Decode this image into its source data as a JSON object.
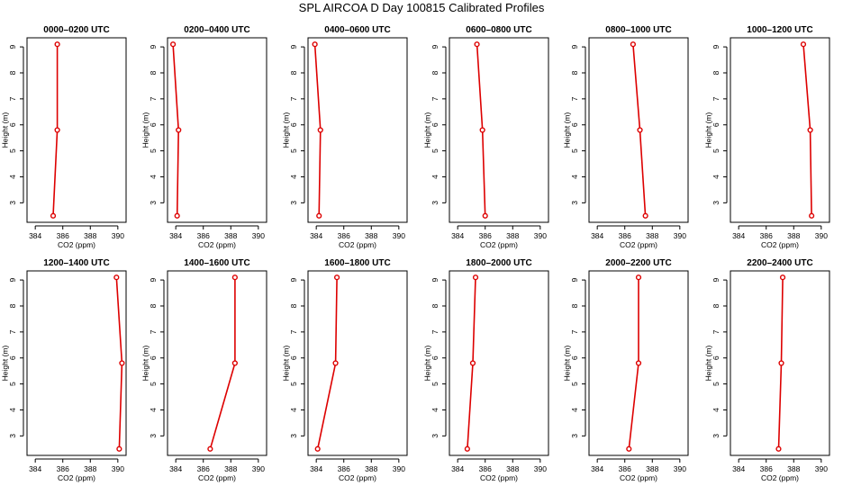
{
  "figure": {
    "title": "SPL AIRCOA D  Day 100815  Calibrated Profiles"
  },
  "colors": {
    "series": "#dd0000",
    "axes": "#000000",
    "background": "#ffffff"
  },
  "chart_data": [
    {
      "type": "line",
      "title": "0000–0200 UTC",
      "xlabel": "CO2 (ppm)",
      "ylabel": "Height (m)",
      "xlim": [
        383.4,
        390.6
      ],
      "ylim": [
        2.25,
        9.35
      ],
      "xticks": [
        384,
        386,
        388,
        390
      ],
      "xticklabels": [
        "384",
        "386",
        "388",
        "390"
      ],
      "yticks": [
        3,
        4,
        5,
        6,
        7,
        8,
        9
      ],
      "yticklabels": [
        "3",
        "4",
        "5",
        "6",
        "7",
        "8",
        "9"
      ],
      "grid": false,
      "x": [
        385.6,
        385.6,
        385.3
      ],
      "y": [
        9.1,
        5.8,
        2.5
      ]
    },
    {
      "type": "line",
      "title": "0200–0400 UTC",
      "xlabel": "CO2 (ppm)",
      "ylabel": "Height (m)",
      "xlim": [
        383.4,
        390.6
      ],
      "ylim": [
        2.25,
        9.35
      ],
      "xticks": [
        384,
        386,
        388,
        390
      ],
      "xticklabels": [
        "384",
        "386",
        "388",
        "390"
      ],
      "yticks": [
        3,
        4,
        5,
        6,
        7,
        8,
        9
      ],
      "yticklabels": [
        "3",
        "4",
        "5",
        "6",
        "7",
        "8",
        "9"
      ],
      "grid": false,
      "x": [
        383.8,
        384.2,
        384.1
      ],
      "y": [
        9.1,
        5.8,
        2.5
      ]
    },
    {
      "type": "line",
      "title": "0400–0600 UTC",
      "xlabel": "CO2 (ppm)",
      "ylabel": "Height (m)",
      "xlim": [
        383.4,
        390.6
      ],
      "ylim": [
        2.25,
        9.35
      ],
      "xticks": [
        384,
        386,
        388,
        390
      ],
      "xticklabels": [
        "384",
        "386",
        "388",
        "390"
      ],
      "yticks": [
        3,
        4,
        5,
        6,
        7,
        8,
        9
      ],
      "yticklabels": [
        "3",
        "4",
        "5",
        "6",
        "7",
        "8",
        "9"
      ],
      "grid": false,
      "x": [
        383.9,
        384.3,
        384.2
      ],
      "y": [
        9.1,
        5.8,
        2.5
      ]
    },
    {
      "type": "line",
      "title": "0600–0800 UTC",
      "xlabel": "CO2 (ppm)",
      "ylabel": "Height (m)",
      "xlim": [
        383.4,
        390.6
      ],
      "ylim": [
        2.25,
        9.35
      ],
      "xticks": [
        384,
        386,
        388,
        390
      ],
      "xticklabels": [
        "384",
        "386",
        "388",
        "390"
      ],
      "yticks": [
        3,
        4,
        5,
        6,
        7,
        8,
        9
      ],
      "yticklabels": [
        "3",
        "4",
        "5",
        "6",
        "7",
        "8",
        "9"
      ],
      "grid": false,
      "x": [
        385.4,
        385.8,
        386.0
      ],
      "y": [
        9.1,
        5.8,
        2.5
      ]
    },
    {
      "type": "line",
      "title": "0800–1000 UTC",
      "xlabel": "CO2 (ppm)",
      "ylabel": "Height (m)",
      "xlim": [
        383.4,
        390.6
      ],
      "ylim": [
        2.25,
        9.35
      ],
      "xticks": [
        384,
        386,
        388,
        390
      ],
      "xticklabels": [
        "384",
        "386",
        "388",
        "390"
      ],
      "yticks": [
        3,
        4,
        5,
        6,
        7,
        8,
        9
      ],
      "yticklabels": [
        "3",
        "4",
        "5",
        "6",
        "7",
        "8",
        "9"
      ],
      "grid": false,
      "x": [
        386.6,
        387.1,
        387.5
      ],
      "y": [
        9.1,
        5.8,
        2.5
      ]
    },
    {
      "type": "line",
      "title": "1000–1200 UTC",
      "xlabel": "CO2 (ppm)",
      "ylabel": "Height (m)",
      "xlim": [
        383.4,
        390.6
      ],
      "ylim": [
        2.25,
        9.35
      ],
      "xticks": [
        384,
        386,
        388,
        390
      ],
      "xticklabels": [
        "384",
        "386",
        "388",
        "390"
      ],
      "yticks": [
        3,
        4,
        5,
        6,
        7,
        8,
        9
      ],
      "yticklabels": [
        "3",
        "4",
        "5",
        "6",
        "7",
        "8",
        "9"
      ],
      "grid": false,
      "x": [
        388.7,
        389.2,
        389.3
      ],
      "y": [
        9.1,
        5.8,
        2.5
      ]
    },
    {
      "type": "line",
      "title": "1200–1400 UTC",
      "xlabel": "CO2 (ppm)",
      "ylabel": "Height (m)",
      "xlim": [
        383.4,
        390.6
      ],
      "ylim": [
        2.25,
        9.35
      ],
      "xticks": [
        384,
        386,
        388,
        390
      ],
      "xticklabels": [
        "384",
        "386",
        "388",
        "390"
      ],
      "yticks": [
        3,
        4,
        5,
        6,
        7,
        8,
        9
      ],
      "yticklabels": [
        "3",
        "4",
        "5",
        "6",
        "7",
        "8",
        "9"
      ],
      "grid": false,
      "x": [
        389.9,
        390.3,
        390.1
      ],
      "y": [
        9.1,
        5.8,
        2.5
      ]
    },
    {
      "type": "line",
      "title": "1400–1600 UTC",
      "xlabel": "CO2 (ppm)",
      "ylabel": "Height (m)",
      "xlim": [
        383.4,
        390.6
      ],
      "ylim": [
        2.25,
        9.35
      ],
      "xticks": [
        384,
        386,
        388,
        390
      ],
      "xticklabels": [
        "384",
        "386",
        "388",
        "390"
      ],
      "yticks": [
        3,
        4,
        5,
        6,
        7,
        8,
        9
      ],
      "yticklabels": [
        "3",
        "4",
        "5",
        "6",
        "7",
        "8",
        "9"
      ],
      "grid": false,
      "x": [
        388.3,
        388.3,
        386.5
      ],
      "y": [
        9.1,
        5.8,
        2.5
      ]
    },
    {
      "type": "line",
      "title": "1600–1800 UTC",
      "xlabel": "CO2 (ppm)",
      "ylabel": "Height (m)",
      "xlim": [
        383.4,
        390.6
      ],
      "ylim": [
        2.25,
        9.35
      ],
      "xticks": [
        384,
        386,
        388,
        390
      ],
      "xticklabels": [
        "384",
        "386",
        "388",
        "390"
      ],
      "yticks": [
        3,
        4,
        5,
        6,
        7,
        8,
        9
      ],
      "yticklabels": [
        "3",
        "4",
        "5",
        "6",
        "7",
        "8",
        "9"
      ],
      "grid": false,
      "x": [
        385.5,
        385.4,
        384.1
      ],
      "y": [
        9.1,
        5.8,
        2.5
      ]
    },
    {
      "type": "line",
      "title": "1800–2000 UTC",
      "xlabel": "CO2 (ppm)",
      "ylabel": "Height (m)",
      "xlim": [
        383.4,
        390.6
      ],
      "ylim": [
        2.25,
        9.35
      ],
      "xticks": [
        384,
        386,
        388,
        390
      ],
      "xticklabels": [
        "384",
        "386",
        "388",
        "390"
      ],
      "yticks": [
        3,
        4,
        5,
        6,
        7,
        8,
        9
      ],
      "yticklabels": [
        "3",
        "4",
        "5",
        "6",
        "7",
        "8",
        "9"
      ],
      "grid": false,
      "x": [
        385.3,
        385.1,
        384.7
      ],
      "y": [
        9.1,
        5.8,
        2.5
      ]
    },
    {
      "type": "line",
      "title": "2000–2200 UTC",
      "xlabel": "CO2 (ppm)",
      "ylabel": "Height (m)",
      "xlim": [
        383.4,
        390.6
      ],
      "ylim": [
        2.25,
        9.35
      ],
      "xticks": [
        384,
        386,
        388,
        390
      ],
      "xticklabels": [
        "384",
        "386",
        "388",
        "390"
      ],
      "yticks": [
        3,
        4,
        5,
        6,
        7,
        8,
        9
      ],
      "yticklabels": [
        "3",
        "4",
        "5",
        "6",
        "7",
        "8",
        "9"
      ],
      "grid": false,
      "x": [
        387.0,
        387.0,
        386.3
      ],
      "y": [
        9.1,
        5.8,
        2.5
      ]
    },
    {
      "type": "line",
      "title": "2200–2400 UTC",
      "xlabel": "CO2 (ppm)",
      "ylabel": "Height (m)",
      "xlim": [
        383.4,
        390.6
      ],
      "ylim": [
        2.25,
        9.35
      ],
      "xticks": [
        384,
        386,
        388,
        390
      ],
      "xticklabels": [
        "384",
        "386",
        "388",
        "390"
      ],
      "yticks": [
        3,
        4,
        5,
        6,
        7,
        8,
        9
      ],
      "yticklabels": [
        "3",
        "4",
        "5",
        "6",
        "7",
        "8",
        "9"
      ],
      "grid": false,
      "x": [
        387.2,
        387.1,
        386.9
      ],
      "y": [
        9.1,
        5.8,
        2.5
      ]
    }
  ]
}
